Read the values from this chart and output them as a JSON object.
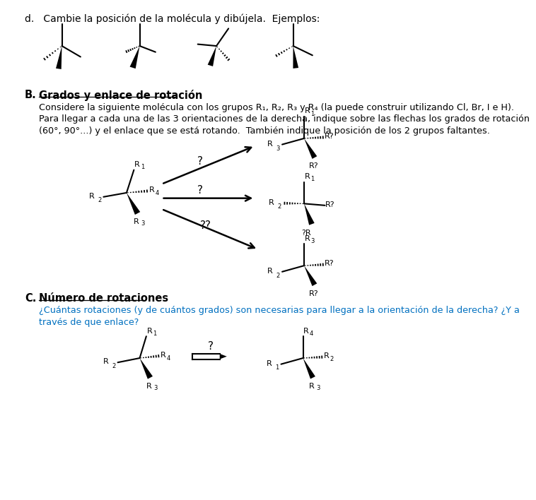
{
  "title_d": "d.   Cambie la posición de la molécula y dibújela.  Ejemplos:",
  "title_B_label": "B.",
  "title_B_text": "Grados y enlace de rotación",
  "text_B1": "Considere la siguiente molécula con los grupos R₁, R₂, R₃ y R₄ (la puede construir utilizando Cl, Br, I e H).",
  "text_B2": "Para llegar a cada una de las 3 orientaciones de la derecha, indique sobre las flechas los grados de rotación",
  "text_B3": "(60°, 90°...) y el enlace que se está rotando.  También indique la posición de los 2 grupos faltantes.",
  "title_C_label": "C.",
  "title_C_text": "Número de rotaciones",
  "text_C1": "¿Cuántas rotaciones (y de cuántos grados) son necesarias para llegar a la orientación de la derecha? ¿Y a",
  "text_C2": "través de que enlace?",
  "blue_color": "#0070C0",
  "black_color": "#000000"
}
